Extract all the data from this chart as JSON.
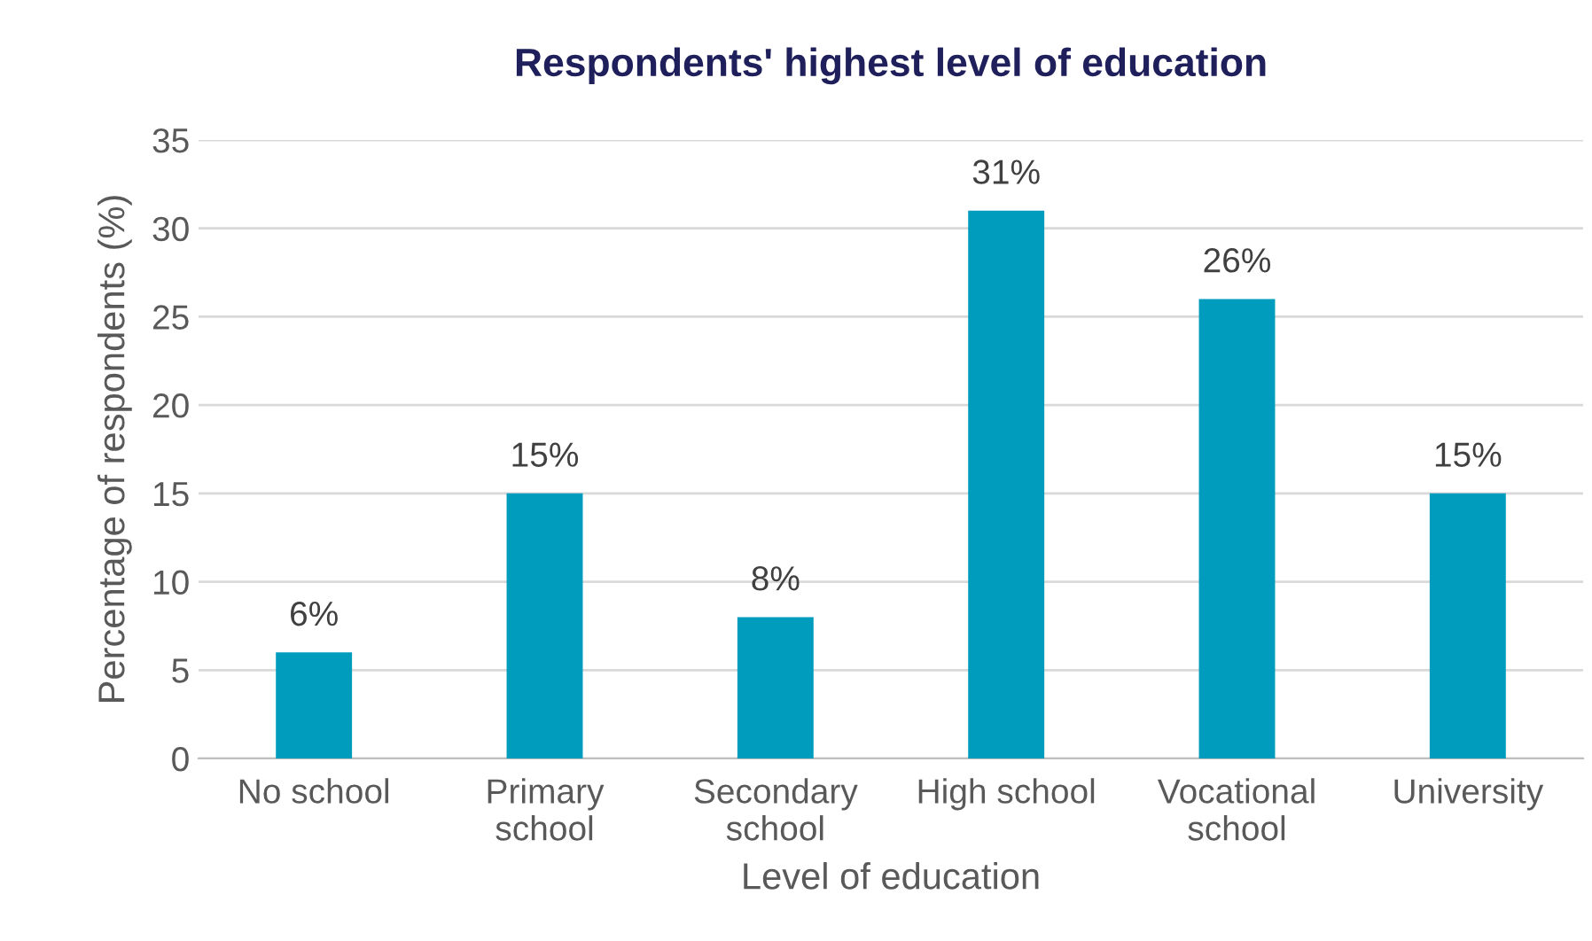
{
  "chart_data": {
    "type": "bar",
    "title": "Respondents' highest level of education",
    "xlabel": "Level of education",
    "ylabel": "Percentage of respondents (%)",
    "categories": [
      "No school",
      "Primary\nschool",
      "Secondary\nschool",
      "High school",
      "Vocational\nschool",
      "University"
    ],
    "values": [
      6,
      15,
      8,
      31,
      26,
      15
    ],
    "value_labels": [
      "6%",
      "15%",
      "8%",
      "31%",
      "26%",
      "15%"
    ],
    "color": "#009cbd",
    "ylim": [
      0,
      35
    ],
    "yticks": [
      0,
      5,
      10,
      15,
      20,
      25,
      30,
      35
    ],
    "grid": "y"
  }
}
